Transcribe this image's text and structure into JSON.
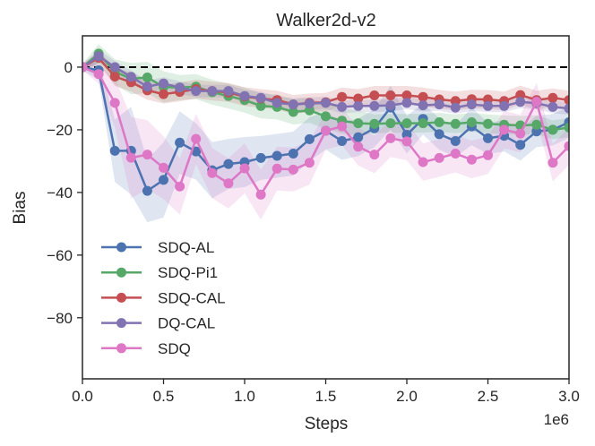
{
  "chart_data": {
    "type": "line",
    "title": "Walker2d-v2",
    "xlabel": "Steps",
    "ylabel": "Bias",
    "x_offset_label": "1e6",
    "xlim": [
      0,
      3.0
    ],
    "ylim": [
      -99.5,
      10
    ],
    "xticks": [
      0.0,
      0.5,
      1.0,
      1.5,
      2.0,
      2.5,
      3.0
    ],
    "xtick_labels": [
      "0.0",
      "0.5",
      "1.0",
      "1.5",
      "2.0",
      "2.5",
      "3.0"
    ],
    "yticks": [
      0,
      -20,
      -40,
      -60,
      -80
    ],
    "ytick_labels": [
      "0",
      "−20",
      "−40",
      "−60",
      "−80"
    ],
    "grid": false,
    "legend_position": "lower-left",
    "reference_line": {
      "y": 0,
      "style": "dashed",
      "color": "#000000"
    },
    "x": [
      0.0,
      0.1,
      0.2,
      0.3,
      0.4,
      0.5,
      0.6,
      0.7,
      0.8,
      0.9,
      1.0,
      1.1,
      1.2,
      1.3,
      1.4,
      1.5,
      1.6,
      1.7,
      1.8,
      1.9,
      2.0,
      2.1,
      2.2,
      2.3,
      2.4,
      2.5,
      2.6,
      2.7,
      2.8,
      2.9,
      3.0
    ],
    "series": [
      {
        "name": "SDQ-AL",
        "color": "#4C72B0",
        "values": [
          0,
          -1,
          -26.7,
          -26.7,
          -39.5,
          -36,
          -24.1,
          -26.9,
          -32.9,
          -30.9,
          -30.3,
          -29,
          -28.3,
          -27.6,
          -23,
          -20.3,
          -23.6,
          -22.4,
          -19.5,
          -12.9,
          -21.6,
          -16.5,
          -21.4,
          -23.6,
          -18.9,
          -22.7,
          -21.9,
          -24.8,
          -20.5,
          -20,
          -17.6
        ],
        "band_halfwidth": [
          1,
          3,
          10,
          14,
          10,
          12,
          10,
          9,
          9,
          8,
          8,
          7,
          7,
          7,
          7,
          6,
          6,
          6,
          6,
          7,
          6,
          5,
          5,
          5,
          6,
          5,
          5,
          5,
          5,
          5,
          5
        ]
      },
      {
        "name": "SDQ-Pi1",
        "color": "#55A868",
        "values": [
          0,
          4.3,
          -1.5,
          -3.7,
          -3.3,
          -6.3,
          -6.5,
          -6.2,
          -8,
          -9.2,
          -10.5,
          -12.4,
          -12.7,
          -14.3,
          -13.8,
          -15.7,
          -17.1,
          -17.9,
          -18.1,
          -17.9,
          -17.9,
          -17.9,
          -17.6,
          -18.1,
          -17.6,
          -18.1,
          -18.4,
          -18.6,
          -18.4,
          -20,
          -19.3
        ],
        "band_halfwidth": [
          1,
          3,
          4,
          5,
          5,
          5,
          4,
          4,
          4,
          4,
          4,
          4,
          4,
          4,
          4,
          4,
          4,
          4,
          3,
          3,
          3,
          3,
          3,
          3,
          3,
          3,
          3,
          3,
          3,
          3,
          3
        ]
      },
      {
        "name": "SDQ-CAL",
        "color": "#C44E52",
        "values": [
          0,
          3,
          -3,
          -4.8,
          -7.4,
          -8.6,
          -7.9,
          -7,
          -7.6,
          -8.1,
          -9.4,
          -10,
          -10.5,
          -11.9,
          -11.4,
          -11.2,
          -9.5,
          -10,
          -9,
          -9,
          -9,
          -9.5,
          -10.3,
          -10.8,
          -10.2,
          -10.3,
          -10.8,
          -8.9,
          -10.5,
          -9.8,
          -10.5
        ],
        "band_halfwidth": [
          1,
          2,
          3,
          3,
          3,
          3,
          3,
          3,
          3,
          3,
          3,
          3,
          3,
          3,
          3,
          3,
          3,
          3,
          3,
          3,
          3,
          3,
          3,
          3,
          3,
          3,
          3,
          3,
          3,
          3,
          3
        ]
      },
      {
        "name": "DQ-CAL",
        "color": "#8172B2",
        "values": [
          0,
          3.5,
          0,
          -3.1,
          -6.2,
          -5.2,
          -6.5,
          -7.6,
          -7.6,
          -7.6,
          -9.2,
          -9.8,
          -11.4,
          -11.9,
          -11.6,
          -11.4,
          -12.7,
          -12.4,
          -12.4,
          -12.2,
          -11.4,
          -12.2,
          -11.9,
          -12.9,
          -11.9,
          -12.4,
          -12.4,
          -11.1,
          -11.5,
          -12.7,
          -13.2
        ],
        "band_halfwidth": [
          1,
          2,
          2,
          2,
          2,
          2,
          2,
          2,
          2,
          2,
          2,
          2,
          2,
          2,
          2,
          2,
          2,
          2,
          2,
          2,
          2,
          2,
          2,
          2,
          2,
          2,
          2,
          2,
          2,
          2,
          2
        ]
      },
      {
        "name": "SDQ",
        "color": "#DD77C6",
        "values": [
          0,
          -2.2,
          -11.4,
          -28.9,
          -27.9,
          -32.1,
          -38.1,
          -22.9,
          -33.8,
          -37.1,
          -32.3,
          -40.7,
          -32.4,
          -32.7,
          -30.5,
          -20.3,
          -18.9,
          -25.4,
          -27.9,
          -22.7,
          -23.7,
          -30.3,
          -29,
          -27.6,
          -29.5,
          -28.1,
          -20,
          -21.2,
          -11,
          -30.5,
          -25.2
        ],
        "band_halfwidth": [
          1,
          3,
          8,
          13,
          11,
          10,
          9,
          8,
          8,
          8,
          8,
          8,
          7,
          7,
          7,
          6,
          6,
          6,
          6,
          6,
          6,
          6,
          6,
          6,
          6,
          6,
          6,
          6,
          6,
          6,
          6
        ]
      }
    ]
  }
}
